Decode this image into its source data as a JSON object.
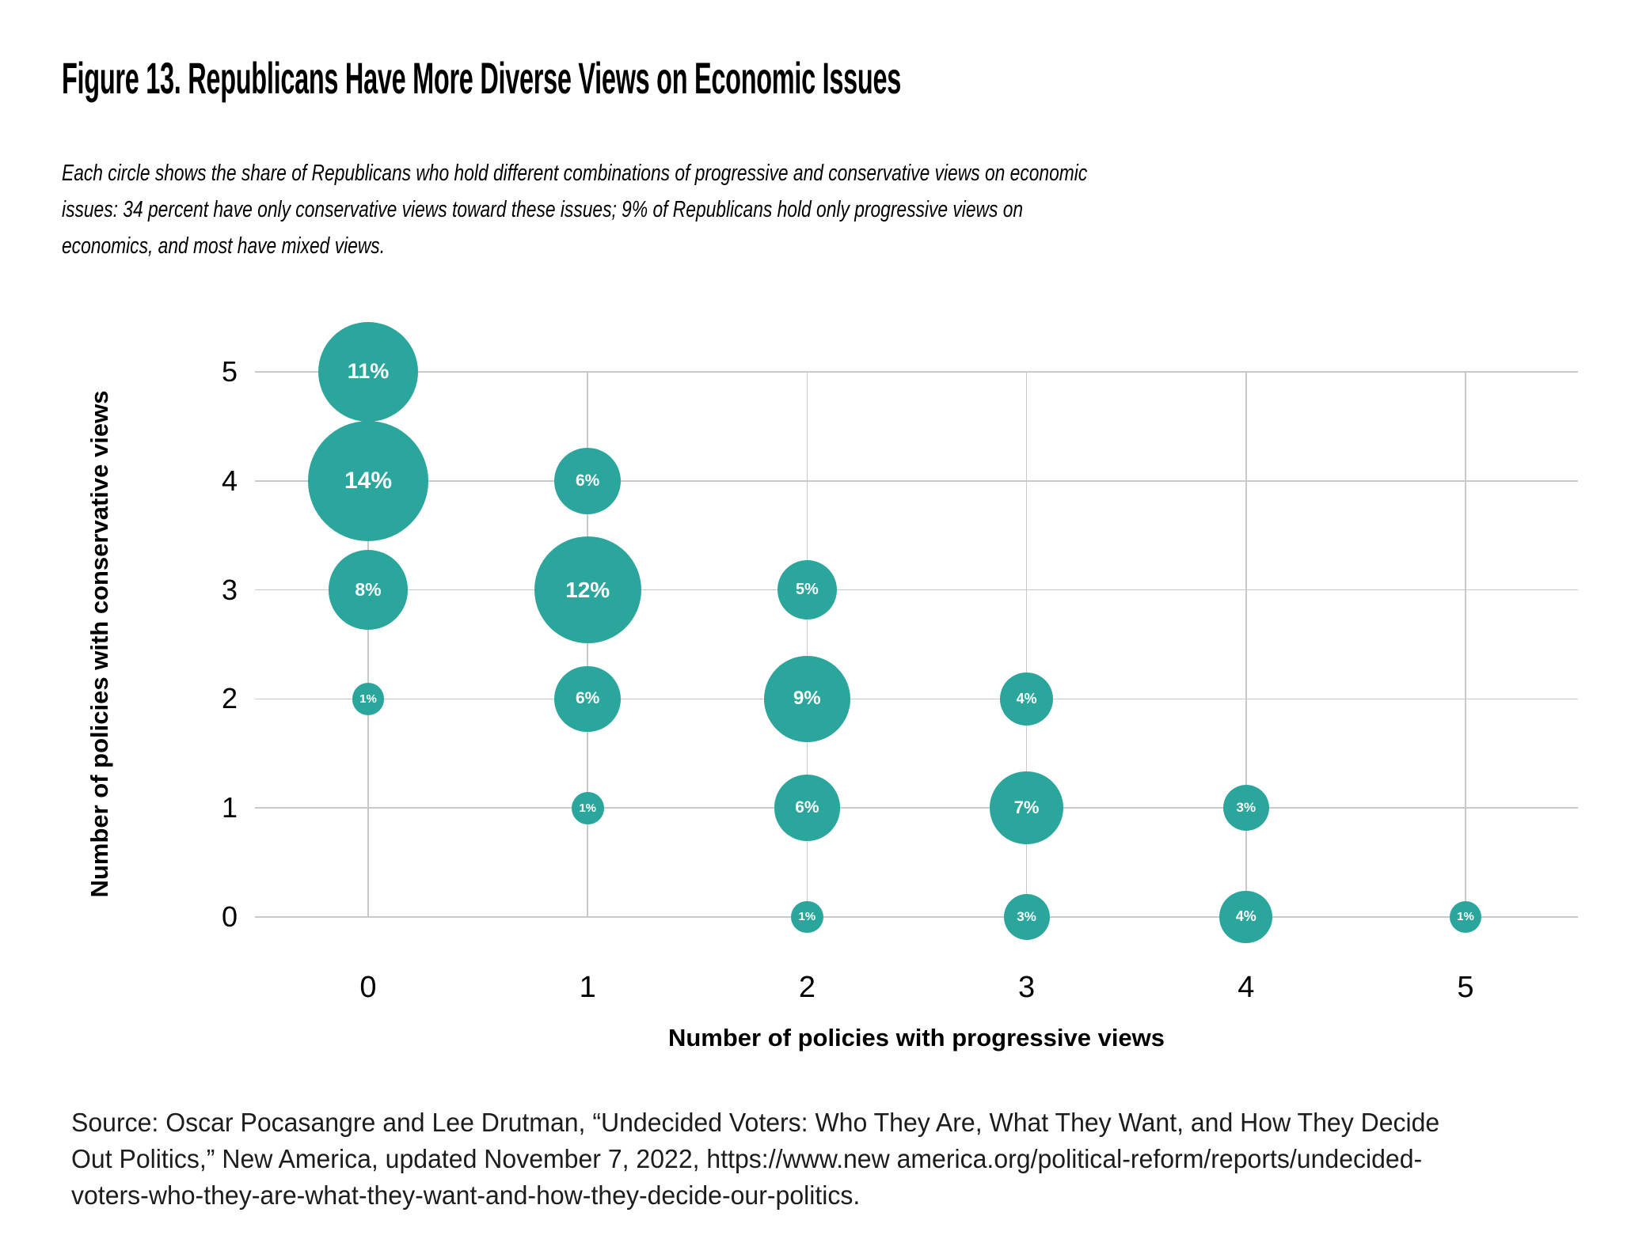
{
  "title": "Figure 13. Republicans Have More Diverse Views on Economic Issues",
  "subtitle": {
    "lines": [
      "Each circle shows the share of Republicans who hold different combinations of progressive and conservative views on economic",
      "issues: 34 percent have only conservative views toward these issues; 9% of Republicans hold only progressive views on",
      "economics, and most have mixed views."
    ]
  },
  "source": {
    "lines": [
      "Source: Oscar Pocasangre and Lee Drutman, “Undecided Voters: Who They Are, What They Want, and How They Decide",
      "Out Politics,” New America, updated November 7, 2022, https://www.new america.org/political-reform/reports/undecided-",
      "voters-who-they-are-what-they-want-and-how-they-decide-our-politics."
    ]
  },
  "chart_data": {
    "type": "scatter",
    "subtype": "bubble",
    "title": "",
    "xlabel": "Number of policies with progressive views",
    "ylabel": "Number of policies with conservative views",
    "x_ticks": [
      0,
      1,
      2,
      3,
      4,
      5
    ],
    "y_ticks": [
      0,
      1,
      2,
      3,
      4,
      5
    ],
    "xlim": [
      -0.5,
      5.5
    ],
    "ylim": [
      -0.5,
      5.5
    ],
    "grid": true,
    "legend": "none",
    "bubble_color": "#2aa69d",
    "label_color": "#ffffff",
    "gridline_color": "#c9c9c9",
    "points": [
      {
        "x": 0,
        "y": 5,
        "value": 11,
        "label": "11%"
      },
      {
        "x": 0,
        "y": 4,
        "value": 14,
        "label": "14%"
      },
      {
        "x": 0,
        "y": 3,
        "value": 8,
        "label": "8%"
      },
      {
        "x": 0,
        "y": 2,
        "value": 1,
        "label": "1%"
      },
      {
        "x": 1,
        "y": 4,
        "value": 6,
        "label": "6%"
      },
      {
        "x": 1,
        "y": 3,
        "value": 12,
        "label": "12%"
      },
      {
        "x": 1,
        "y": 2,
        "value": 6,
        "label": "6%"
      },
      {
        "x": 1,
        "y": 1,
        "value": 1,
        "label": "1%"
      },
      {
        "x": 2,
        "y": 3,
        "value": 5,
        "label": "5%"
      },
      {
        "x": 2,
        "y": 2,
        "value": 9,
        "label": "9%"
      },
      {
        "x": 2,
        "y": 1,
        "value": 6,
        "label": "6%"
      },
      {
        "x": 2,
        "y": 0,
        "value": 1,
        "label": "1%"
      },
      {
        "x": 3,
        "y": 2,
        "value": 4,
        "label": "4%"
      },
      {
        "x": 3,
        "y": 1,
        "value": 7,
        "label": "7%"
      },
      {
        "x": 3,
        "y": 0,
        "value": 3,
        "label": "3%"
      },
      {
        "x": 4,
        "y": 1,
        "value": 3,
        "label": "3%"
      },
      {
        "x": 4,
        "y": 0,
        "value": 4,
        "label": "4%"
      },
      {
        "x": 5,
        "y": 0,
        "value": 1,
        "label": "1%"
      }
    ]
  }
}
